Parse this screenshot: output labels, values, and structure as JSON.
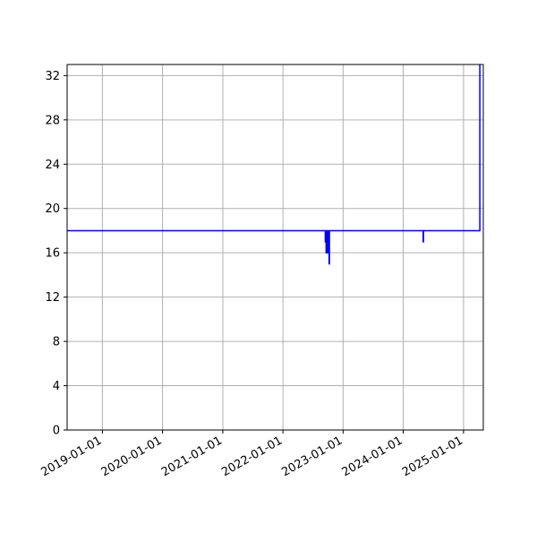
{
  "chart_data": {
    "type": "line",
    "title": "",
    "xlabel": "",
    "ylabel": "",
    "grid": true,
    "legend": "none",
    "x_axis_type": "date",
    "xlim": [
      "2018-06-01",
      "2025-05-01"
    ],
    "ylim": [
      0,
      33
    ],
    "x_tick_labels": [
      "2019-01-01",
      "2020-01-01",
      "2021-01-01",
      "2022-01-01",
      "2023-01-01",
      "2024-01-01",
      "2025-01-01"
    ],
    "y_tick_labels": [
      "0",
      "4",
      "8",
      "12",
      "16",
      "20",
      "24",
      "28",
      "32"
    ],
    "series": [
      {
        "color": "#0000ff",
        "points": [
          {
            "x": "2018-06-01",
            "y": 18
          },
          {
            "x": "2022-09-15",
            "y": 18
          },
          {
            "x": "2022-09-15",
            "y": 17
          },
          {
            "x": "2022-09-18",
            "y": 17
          },
          {
            "x": "2022-09-18",
            "y": 18
          },
          {
            "x": "2022-09-20",
            "y": 18
          },
          {
            "x": "2022-09-20",
            "y": 16
          },
          {
            "x": "2022-09-25",
            "y": 16
          },
          {
            "x": "2022-09-25",
            "y": 18
          },
          {
            "x": "2022-10-01",
            "y": 18
          },
          {
            "x": "2022-10-01",
            "y": 16
          },
          {
            "x": "2022-10-03",
            "y": 16
          },
          {
            "x": "2022-10-03",
            "y": 18
          },
          {
            "x": "2022-10-08",
            "y": 18
          },
          {
            "x": "2022-10-08",
            "y": 15
          },
          {
            "x": "2022-10-10",
            "y": 15
          },
          {
            "x": "2022-10-10",
            "y": 18
          },
          {
            "x": "2024-05-01",
            "y": 18
          },
          {
            "x": "2024-05-01",
            "y": 17
          },
          {
            "x": "2024-05-03",
            "y": 17
          },
          {
            "x": "2024-05-03",
            "y": 18
          },
          {
            "x": "2025-04-10",
            "y": 18
          },
          {
            "x": "2025-04-10",
            "y": 33
          }
        ]
      }
    ]
  }
}
